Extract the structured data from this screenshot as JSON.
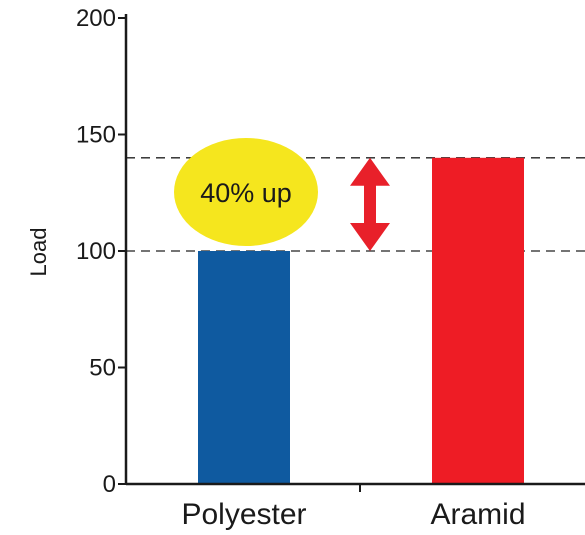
{
  "chart_data": {
    "type": "bar",
    "categories": [
      "Polyester",
      "Aramid"
    ],
    "values": [
      100,
      140
    ],
    "xlabel": "",
    "ylabel": "Load",
    "ylim": [
      0,
      200
    ],
    "yticks": [
      0,
      50,
      100,
      150,
      200
    ],
    "grid": false,
    "reference_lines": [
      100,
      140
    ],
    "annotation": {
      "text": "40% up",
      "from": 100,
      "to": 140
    }
  },
  "colors": {
    "bars": [
      "#0f5aa0",
      "#ee1c25"
    ],
    "callout_fill": "#f5e61e",
    "arrow": "#e8202a",
    "axis": "#1a1a1a",
    "reference_line": "#222222"
  }
}
